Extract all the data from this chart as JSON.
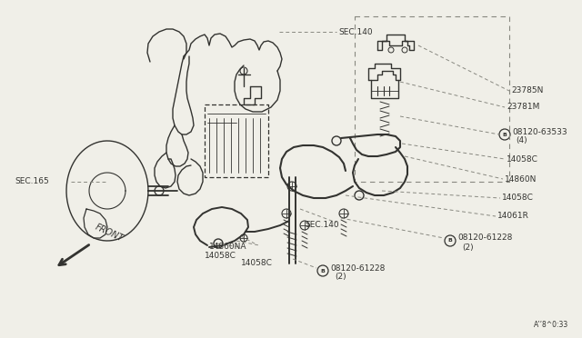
{
  "bg_color": "#f0efe8",
  "line_color": "#888880",
  "dark_line": "#333330",
  "text_color": "#333330",
  "fig_width": 6.4,
  "fig_height": 3.72,
  "labels": {
    "SEC140_top": "SEC.140",
    "SEC165": "SEC.165",
    "SEC140_mid": "SEC.140",
    "FRONT": "FRONT",
    "23785N": "23785N",
    "23781M": "23781M",
    "08120_63533": "08120-63533",
    "08120_63533_4": "(4)",
    "14058C_1": "14058C",
    "14860N": "14860N",
    "14058C_2": "14058C",
    "14061R": "14061R",
    "08120_61228_1": "08120-61228",
    "08120_61228_1b": "(2)",
    "08120_61228_2": "08120-61228",
    "08120_61228_2b": "(2)",
    "14860NA": "14860NA",
    "14058C_3": "14058C",
    "14058C_4": "14058C"
  },
  "diagram_ref": "A’’8^0:33"
}
